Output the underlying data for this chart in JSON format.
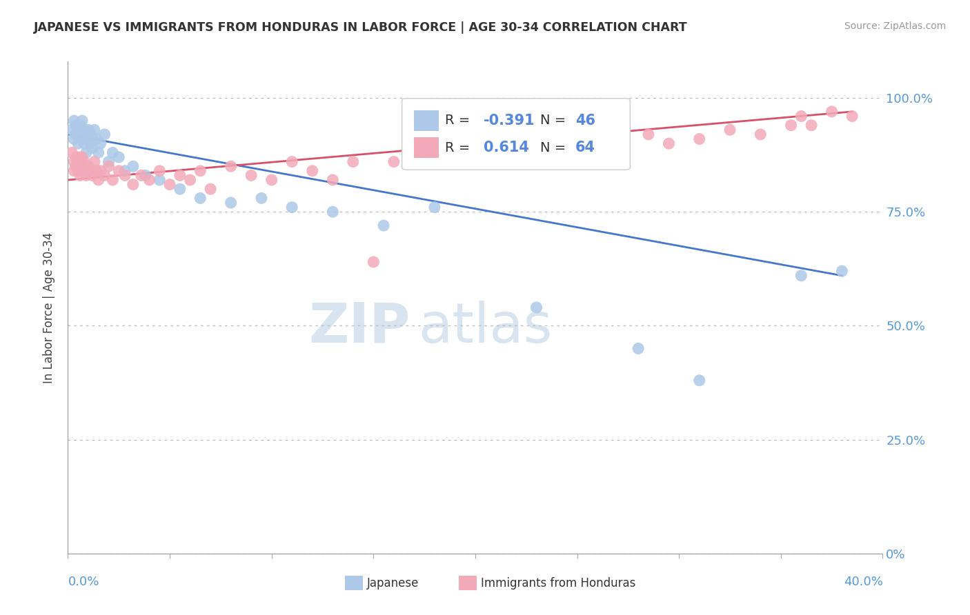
{
  "title": "JAPANESE VS IMMIGRANTS FROM HONDURAS IN LABOR FORCE | AGE 30-34 CORRELATION CHART",
  "source": "Source: ZipAtlas.com",
  "ylabel": "In Labor Force | Age 30-34",
  "ytick_vals": [
    0.0,
    0.25,
    0.5,
    0.75,
    1.0
  ],
  "ytick_labels": [
    "0%",
    "25.0%",
    "50.0%",
    "75.0%",
    "100.0%"
  ],
  "xlim": [
    0.0,
    0.4
  ],
  "ylim": [
    0.0,
    1.08
  ],
  "legend_r_japanese": "-0.391",
  "legend_n_japanese": "46",
  "legend_r_honduras": "0.614",
  "legend_n_honduras": "64",
  "color_japanese": "#adc8e8",
  "color_honduras": "#f2aab8",
  "line_color_japanese": "#4477cc",
  "line_color_honduras": "#d94f6a",
  "watermark_zip": "ZIP",
  "watermark_atlas": "atlas",
  "japanese_x": [
    0.002,
    0.003,
    0.003,
    0.004,
    0.004,
    0.005,
    0.005,
    0.006,
    0.006,
    0.007,
    0.007,
    0.008,
    0.008,
    0.009,
    0.009,
    0.01,
    0.01,
    0.011,
    0.011,
    0.012,
    0.012,
    0.013,
    0.014,
    0.015,
    0.016,
    0.018,
    0.02,
    0.022,
    0.025,
    0.028,
    0.032,
    0.038,
    0.045,
    0.055,
    0.065,
    0.08,
    0.095,
    0.11,
    0.13,
    0.155,
    0.18,
    0.23,
    0.28,
    0.31,
    0.36,
    0.38
  ],
  "japanese_y": [
    0.93,
    0.95,
    0.91,
    0.94,
    0.92,
    0.93,
    0.9,
    0.92,
    0.94,
    0.91,
    0.95,
    0.9,
    0.93,
    0.92,
    0.88,
    0.91,
    0.93,
    0.9,
    0.92,
    0.91,
    0.89,
    0.93,
    0.91,
    0.88,
    0.9,
    0.92,
    0.86,
    0.88,
    0.87,
    0.84,
    0.85,
    0.83,
    0.82,
    0.8,
    0.78,
    0.77,
    0.78,
    0.76,
    0.75,
    0.72,
    0.76,
    0.54,
    0.45,
    0.38,
    0.61,
    0.62
  ],
  "honduras_x": [
    0.002,
    0.003,
    0.003,
    0.004,
    0.004,
    0.005,
    0.005,
    0.006,
    0.006,
    0.007,
    0.007,
    0.008,
    0.008,
    0.009,
    0.01,
    0.011,
    0.012,
    0.013,
    0.014,
    0.015,
    0.016,
    0.018,
    0.02,
    0.022,
    0.025,
    0.028,
    0.032,
    0.036,
    0.04,
    0.045,
    0.05,
    0.055,
    0.06,
    0.065,
    0.07,
    0.08,
    0.09,
    0.1,
    0.11,
    0.12,
    0.13,
    0.14,
    0.15,
    0.16,
    0.17,
    0.18,
    0.19,
    0.2,
    0.21,
    0.22,
    0.23,
    0.245,
    0.26,
    0.27,
    0.285,
    0.295,
    0.31,
    0.325,
    0.34,
    0.355,
    0.36,
    0.365,
    0.375,
    0.385
  ],
  "honduras_y": [
    0.88,
    0.86,
    0.84,
    0.87,
    0.85,
    0.86,
    0.84,
    0.87,
    0.83,
    0.85,
    0.87,
    0.84,
    0.86,
    0.83,
    0.85,
    0.84,
    0.83,
    0.86,
    0.84,
    0.82,
    0.84,
    0.83,
    0.85,
    0.82,
    0.84,
    0.83,
    0.81,
    0.83,
    0.82,
    0.84,
    0.81,
    0.83,
    0.82,
    0.84,
    0.8,
    0.85,
    0.83,
    0.82,
    0.86,
    0.84,
    0.82,
    0.86,
    0.64,
    0.86,
    0.87,
    0.88,
    0.87,
    0.89,
    0.88,
    0.9,
    0.88,
    0.9,
    0.91,
    0.89,
    0.92,
    0.9,
    0.91,
    0.93,
    0.92,
    0.94,
    0.96,
    0.94,
    0.97,
    0.96
  ],
  "jap_trend_x0": 0.0,
  "jap_trend_y0": 0.92,
  "jap_trend_x1": 0.38,
  "jap_trend_y1": 0.61,
  "hon_trend_x0": 0.0,
  "hon_trend_y0": 0.82,
  "hon_trend_x1": 0.385,
  "hon_trend_y1": 0.97
}
